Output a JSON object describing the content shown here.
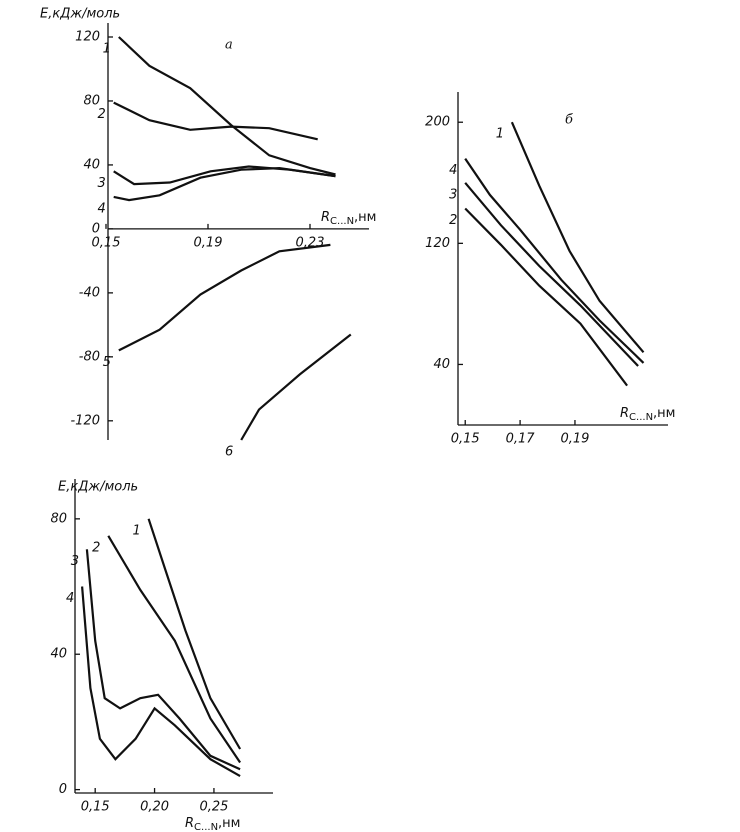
{
  "chart_data": [
    {
      "type": "line",
      "title": "а",
      "y_label": "E,кДж/моль",
      "x_label": "R",
      "x_label_sub": "C...N",
      "x_label_unit": ",нм",
      "xlim": [
        0.15,
        0.25
      ],
      "ylim": [
        -132,
        125
      ],
      "xticks": [
        {
          "value": 0.15,
          "label": "0,15"
        },
        {
          "value": 0.19,
          "label": "0,19"
        },
        {
          "value": 0.23,
          "label": "0,23"
        }
      ],
      "yticks": [
        120,
        80,
        40,
        0,
        -40,
        -80,
        -120
      ],
      "series": [
        {
          "name": "1",
          "color": "#111111",
          "x": [
            0.155,
            0.167,
            0.183,
            0.199,
            0.214,
            0.23,
            0.24
          ],
          "values": [
            120,
            102,
            88,
            65,
            46,
            38,
            34
          ]
        },
        {
          "name": "2",
          "color": "#111111",
          "x": [
            0.153,
            0.167,
            0.183,
            0.199,
            0.214,
            0.233
          ],
          "values": [
            79,
            68,
            62,
            64,
            63,
            56
          ]
        },
        {
          "name": "3",
          "color": "#111111",
          "x": [
            0.153,
            0.161,
            0.175,
            0.191,
            0.206,
            0.222,
            0.24
          ],
          "values": [
            36,
            28,
            29,
            36,
            39,
            37,
            33
          ]
        },
        {
          "name": "4",
          "color": "#111111",
          "x": [
            0.153,
            0.159,
            0.171,
            0.187,
            0.203,
            0.218,
            0.24
          ],
          "values": [
            20,
            18,
            21,
            32,
            37,
            38,
            33
          ]
        },
        {
          "name": "5",
          "color": "#111111",
          "x": [
            0.155,
            0.171,
            0.187,
            0.203,
            0.218,
            0.238
          ],
          "values": [
            -76,
            -63,
            -41,
            -26,
            -14,
            -10
          ]
        },
        {
          "name": "6",
          "color": "#111111",
          "x": [
            0.203,
            0.21,
            0.226,
            0.246
          ],
          "values": [
            -132,
            -113,
            -91,
            -66
          ]
        }
      ]
    },
    {
      "type": "line",
      "title": "б",
      "x_label": "R",
      "x_label_sub": "C...N",
      "x_label_unit": ",нм",
      "xlim": [
        0.147,
        0.221
      ],
      "ylim": [
        0,
        216
      ],
      "xticks": [
        {
          "value": 0.15,
          "label": "0,15"
        },
        {
          "value": 0.17,
          "label": "0,17"
        },
        {
          "value": 0.19,
          "label": "0,19"
        }
      ],
      "yticks": [
        200,
        120,
        40
      ],
      "series": [
        {
          "name": "1",
          "color": "#111111",
          "x": [
            0.167,
            0.177,
            0.188,
            0.199,
            0.215
          ],
          "values": [
            200,
            158,
            115,
            82,
            48
          ]
        },
        {
          "name": "4",
          "color": "#111111",
          "x": [
            0.15,
            0.159,
            0.17,
            0.185,
            0.199,
            0.215
          ],
          "values": [
            176,
            152,
            129,
            96,
            69,
            41
          ]
        },
        {
          "name": "3",
          "color": "#111111",
          "x": [
            0.15,
            0.163,
            0.177,
            0.192,
            0.213
          ],
          "values": [
            160,
            132,
            105,
            79,
            39
          ]
        },
        {
          "name": "2",
          "color": "#111111",
          "x": [
            0.15,
            0.163,
            0.177,
            0.192,
            0.209
          ],
          "values": [
            143,
            119,
            92,
            67,
            26
          ]
        }
      ]
    },
    {
      "type": "line",
      "y_label": "E,кДж/моль",
      "x_label": "R",
      "x_label_sub": "C...N",
      "x_label_unit": ",нм",
      "xlim": [
        0.133,
        0.293
      ],
      "ylim": [
        -1,
        90
      ],
      "xticks": [
        {
          "value": 0.15,
          "label": "0,15"
        },
        {
          "value": 0.2,
          "label": "0,20"
        },
        {
          "value": 0.25,
          "label": "0,25"
        }
      ],
      "yticks": [
        80,
        40,
        0
      ],
      "series": [
        {
          "name": "1",
          "color": "#111111",
          "x": [
            0.195,
            0.209,
            0.226,
            0.247,
            0.272
          ],
          "values": [
            80,
            65,
            47,
            27,
            12
          ]
        },
        {
          "name": "2",
          "color": "#111111",
          "x": [
            0.161,
            0.188,
            0.217,
            0.247,
            0.272
          ],
          "values": [
            75,
            59,
            44,
            21,
            8
          ]
        },
        {
          "name": "3",
          "color": "#111111",
          "x": [
            0.143,
            0.15,
            0.158,
            0.171,
            0.188,
            0.203,
            0.221,
            0.247,
            0.272
          ],
          "values": [
            71,
            44,
            27,
            24,
            27,
            28,
            21,
            10,
            6
          ]
        },
        {
          "name": "4",
          "color": "#111111",
          "x": [
            0.139,
            0.146,
            0.154,
            0.167,
            0.184,
            0.2,
            0.217,
            0.247,
            0.272
          ],
          "values": [
            60,
            30,
            15,
            9,
            15,
            24,
            19,
            9,
            4
          ]
        }
      ]
    }
  ]
}
